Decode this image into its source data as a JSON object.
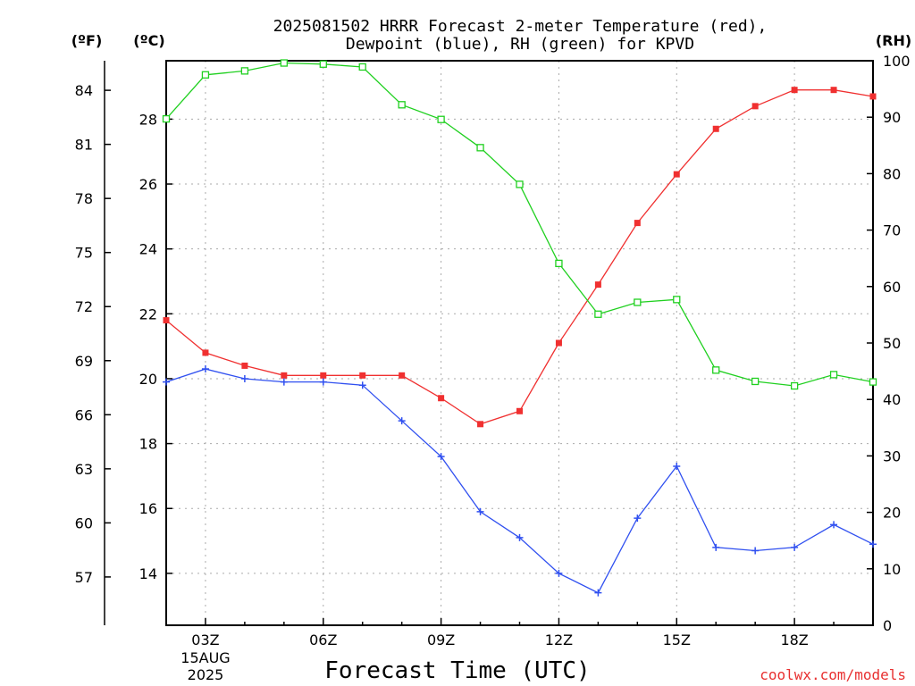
{
  "chart_data": {
    "type": "line",
    "title": [
      "2025081502 HRRR Forecast 2-meter Temperature (red),",
      "Dewpoint (blue), RH (green) for KPVD"
    ],
    "xlabel": "Forecast Time (UTC)",
    "unit_labels": {
      "fahrenheit": "(ºF)",
      "celsius": "(ºC)",
      "rh": "(RH)"
    },
    "date_labels": [
      "15AUG",
      "2025"
    ],
    "credit": "coolwx.com/models",
    "x_hours": [
      2,
      3,
      4,
      5,
      6,
      7,
      8,
      9,
      10,
      11,
      12,
      13,
      14,
      15,
      16,
      17,
      18,
      19,
      20
    ],
    "x_ticks": [
      {
        "hour": 3,
        "label": "03Z"
      },
      {
        "hour": 6,
        "label": "06Z"
      },
      {
        "hour": 9,
        "label": "09Z"
      },
      {
        "hour": 12,
        "label": "12Z"
      },
      {
        "hour": 15,
        "label": "15Z"
      },
      {
        "hour": 18,
        "label": "18Z"
      }
    ],
    "xlim": [
      2,
      20
    ],
    "y_celsius": {
      "lim": [
        12.4,
        29.8
      ],
      "ticks": [
        14,
        16,
        18,
        20,
        22,
        24,
        26,
        28
      ]
    },
    "y_fahrenheit": {
      "ticks": [
        57,
        60,
        63,
        66,
        69,
        72,
        75,
        78,
        81,
        84
      ]
    },
    "y_rh": {
      "lim": [
        0,
        100
      ],
      "ticks": [
        0,
        10,
        20,
        30,
        40,
        50,
        60,
        70,
        80,
        90,
        100
      ]
    },
    "series": [
      {
        "name": "Temperature (red)",
        "axis": "celsius",
        "color": "#f03030",
        "marker": "filled-square",
        "values": [
          21.8,
          20.8,
          20.4,
          20.1,
          20.1,
          20.1,
          20.1,
          19.4,
          18.6,
          19.0,
          21.1,
          22.9,
          24.8,
          26.3,
          27.7,
          28.4,
          28.9,
          28.9,
          28.7
        ]
      },
      {
        "name": "Dewpoint (blue)",
        "axis": "celsius",
        "color": "#3050f0",
        "marker": "plus",
        "values": [
          19.9,
          20.3,
          20.0,
          19.9,
          19.9,
          19.8,
          18.7,
          17.6,
          15.9,
          15.1,
          14.0,
          13.4,
          15.7,
          17.3,
          14.8,
          14.7,
          14.8,
          15.5,
          14.9
        ]
      },
      {
        "name": "RH (green)",
        "axis": "rh",
        "color": "#20d020",
        "marker": "open-square",
        "values": [
          89.7,
          97.5,
          98.2,
          99.6,
          99.4,
          98.9,
          92.2,
          89.6,
          84.6,
          78.1,
          64.1,
          55.1,
          57.2,
          57.7,
          45.2,
          43.2,
          42.4,
          44.4,
          43.1
        ]
      }
    ]
  },
  "colors": {
    "axis": "#000000",
    "grid": "#aaaaaa",
    "credit": "#e83030"
  }
}
